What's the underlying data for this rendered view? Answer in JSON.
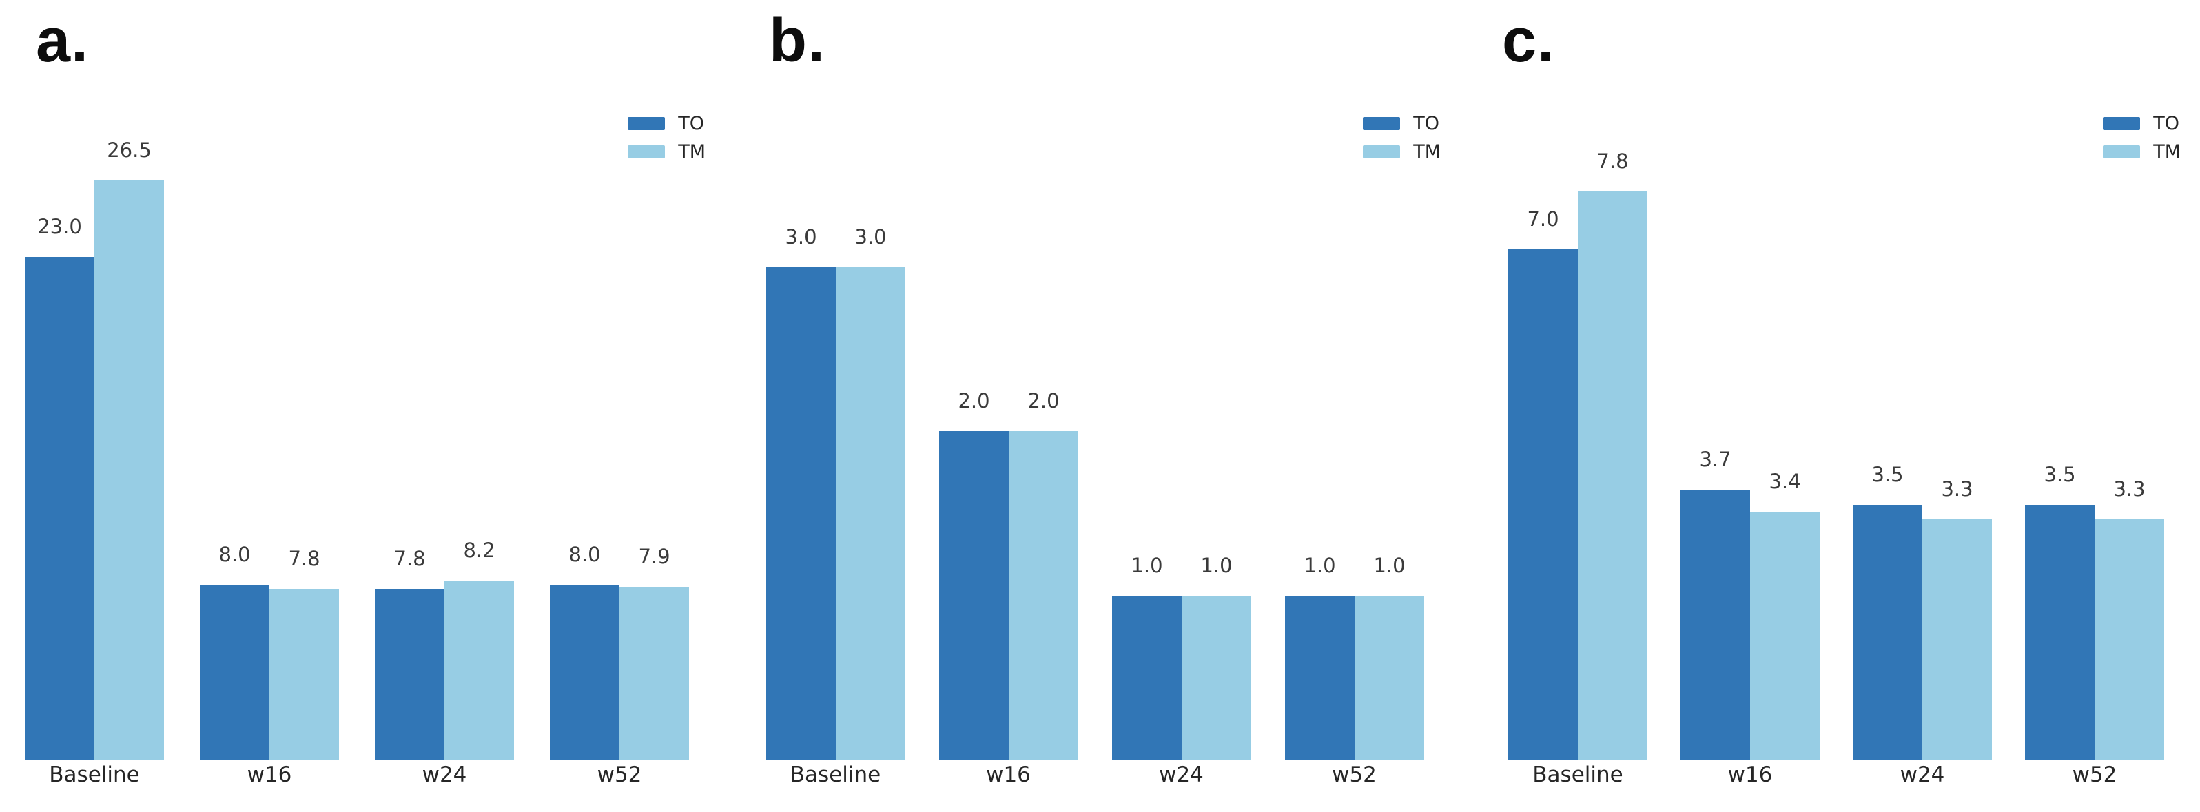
{
  "figure": {
    "background": "#ffffff",
    "series_colors": {
      "TO": "#3176b6",
      "TM": "#97cde4"
    }
  },
  "chart_data": [
    {
      "id": "a",
      "panel_label": "a.",
      "type": "bar",
      "categories": [
        "Baseline",
        "w16",
        "w24",
        "w52"
      ],
      "series": [
        {
          "name": "TO",
          "color": "#3176b6",
          "values": [
            23.0,
            8.0,
            7.8,
            8.0
          ],
          "value_labels": [
            "23.0",
            "8.0",
            "7.8",
            "8.0"
          ]
        },
        {
          "name": "TM",
          "color": "#97cde4",
          "values": [
            26.5,
            7.8,
            8.2,
            7.9
          ],
          "value_labels": [
            "26.5",
            "7.8",
            "8.2",
            "7.9"
          ]
        }
      ],
      "title": "",
      "xlabel": "",
      "ylabel": "",
      "ylim": [
        0,
        32.6
      ],
      "grid": false,
      "axes_visible": false,
      "legend_position": "upper right"
    },
    {
      "id": "b",
      "panel_label": "b.",
      "type": "bar",
      "categories": [
        "Baseline",
        "w16",
        "w24",
        "w52"
      ],
      "series": [
        {
          "name": "TO",
          "color": "#3176b6",
          "values": [
            3.0,
            2.0,
            1.0,
            1.0
          ],
          "value_labels": [
            "3.0",
            "2.0",
            "1.0",
            "1.0"
          ]
        },
        {
          "name": "TM",
          "color": "#97cde4",
          "values": [
            3.0,
            2.0,
            1.0,
            1.0
          ],
          "value_labels": [
            "3.0",
            "2.0",
            "1.0",
            "1.0"
          ]
        }
      ],
      "title": "",
      "xlabel": "",
      "ylabel": "",
      "ylim": [
        0,
        4.34
      ],
      "grid": false,
      "axes_visible": false,
      "legend_position": "upper right"
    },
    {
      "id": "c",
      "panel_label": "c.",
      "type": "bar",
      "categories": [
        "Baseline",
        "w16",
        "w24",
        "w52"
      ],
      "series": [
        {
          "name": "TO",
          "color": "#3176b6",
          "values": [
            7.0,
            3.7,
            3.5,
            3.5
          ],
          "value_labels": [
            "7.0",
            "3.7",
            "3.5",
            "3.5"
          ]
        },
        {
          "name": "TM",
          "color": "#97cde4",
          "values": [
            7.8,
            3.4,
            3.3,
            3.3
          ],
          "value_labels": [
            "7.8",
            "3.4",
            "3.3",
            "3.3"
          ]
        }
      ],
      "title": "",
      "xlabel": "",
      "ylabel": "",
      "ylim": [
        0,
        9.78
      ],
      "grid": false,
      "axes_visible": false,
      "legend_position": "upper right"
    }
  ]
}
